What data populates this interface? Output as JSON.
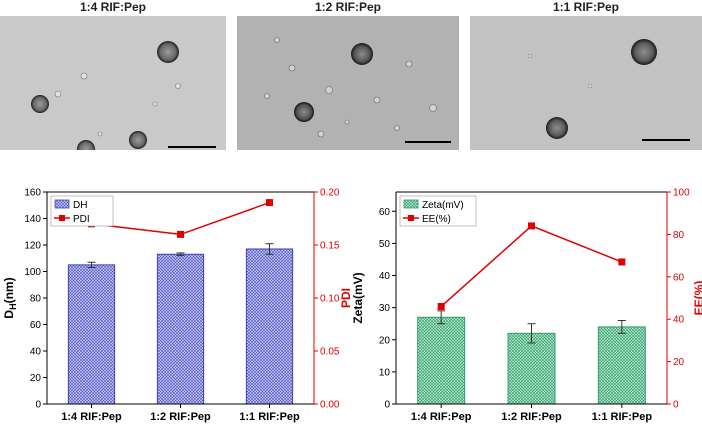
{
  "tem_panels": [
    {
      "title": "1:4 RIF:Pep",
      "tone": "#c9c9c9"
    },
    {
      "title": "1:2 RIF:Pep",
      "tone": "#b2b2b2"
    },
    {
      "title": "1:1 RIF:Pep",
      "tone": "#c2c2c2"
    }
  ],
  "chart_data": [
    {
      "type": "bar",
      "categories": [
        "1:4 RIF:Pep",
        "1:2 RIF:Pep",
        "1:1 RIF:Pep"
      ],
      "series": [
        {
          "name": "DH",
          "type": "bar",
          "axis": "left",
          "values": [
            105,
            113,
            117
          ],
          "errors": [
            2,
            1,
            4
          ],
          "color": "#3b3fc4"
        },
        {
          "name": "PDI",
          "type": "line",
          "axis": "right",
          "values": [
            0.17,
            0.16,
            0.19
          ],
          "color": "#e00000"
        }
      ],
      "ylabel": "DH(nm)",
      "ylabel_main": "D",
      "ylabel_sub": "H",
      "ylabel_tail": "(nm)",
      "y2label": "PDI",
      "ylim": [
        0,
        160
      ],
      "yticks": [
        "0",
        "20",
        "40",
        "60",
        "80",
        "100",
        "120",
        "140",
        "160"
      ],
      "y2lim": [
        0,
        0.2
      ],
      "y2ticks": [
        "0.00",
        "0.05",
        "0.10",
        "0.15",
        "0.20"
      ],
      "legend_position": "top-left"
    },
    {
      "type": "bar",
      "categories": [
        "1:4 RIF:Pep",
        "1:2 RIF:Pep",
        "1:1 RIF:Pep"
      ],
      "series": [
        {
          "name": "Zeta(mV)",
          "type": "bar",
          "axis": "left",
          "values": [
            27,
            22,
            24
          ],
          "errors": [
            2,
            3,
            2
          ],
          "color": "#2ea06e"
        },
        {
          "name": "EE(%)",
          "type": "line",
          "axis": "right",
          "values": [
            46,
            84,
            67
          ],
          "color": "#e00000"
        }
      ],
      "ylabel": "Zeta(mV)",
      "y2label": "EE(%)",
      "ylim": [
        0,
        66
      ],
      "yticks": [
        "0",
        "10",
        "20",
        "30",
        "40",
        "50",
        "60"
      ],
      "y2lim": [
        0,
        100
      ],
      "y2ticks": [
        "0",
        "20",
        "40",
        "60",
        "80",
        "100"
      ],
      "legend_position": "top-left"
    }
  ]
}
